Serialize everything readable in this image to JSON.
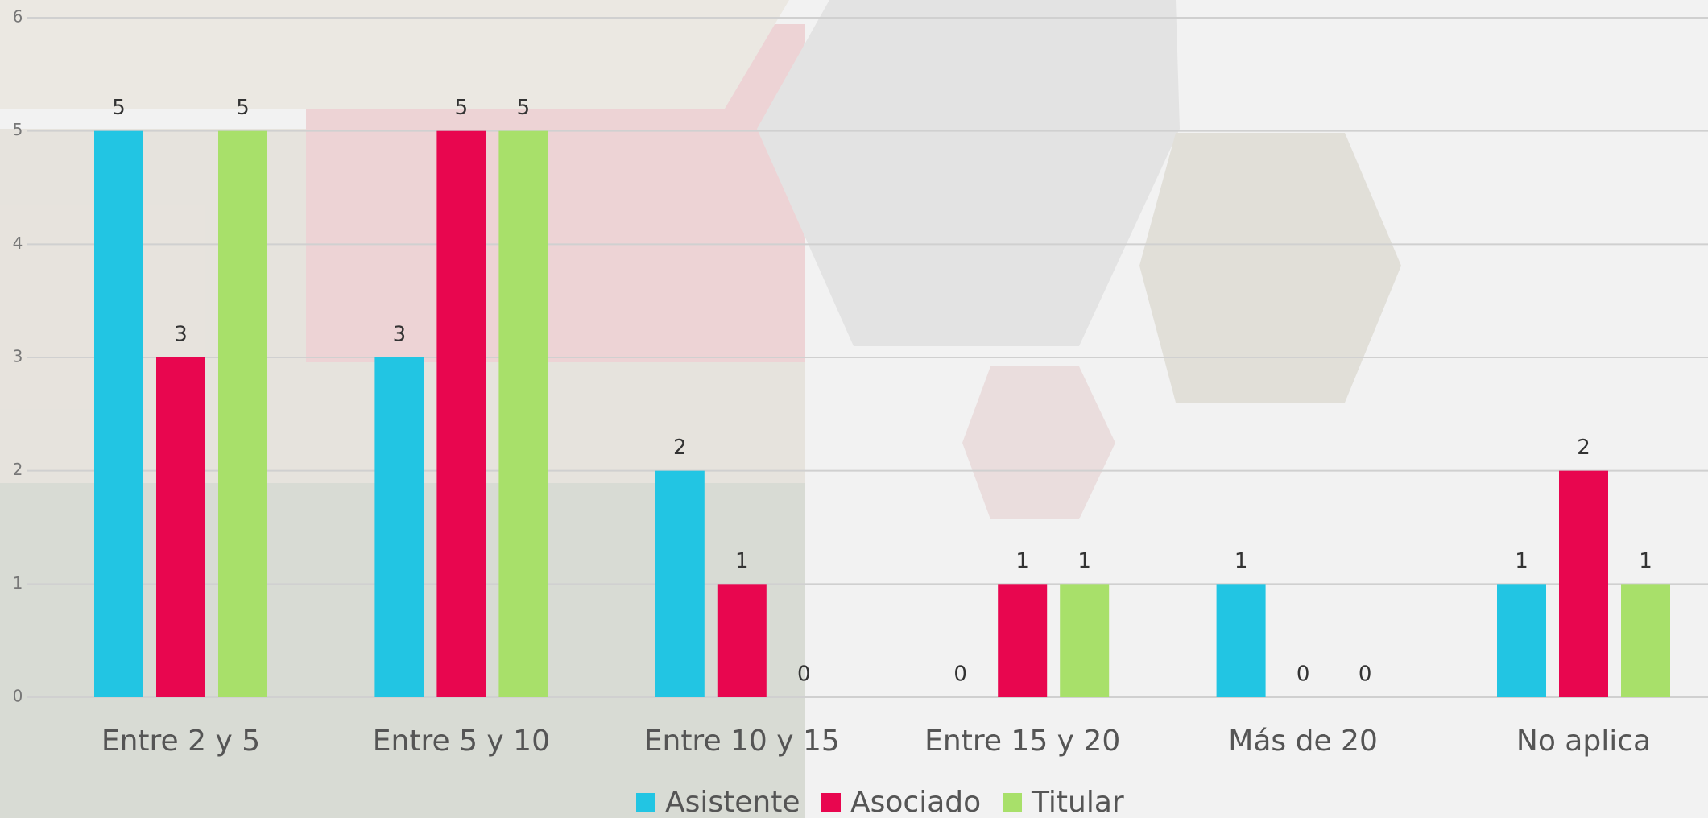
{
  "chart_data": {
    "type": "bar",
    "categories": [
      "Entre 2 y 5",
      "Entre 5 y 10",
      "Entre 10 y 15",
      "Entre 15 y 20",
      "Más de 20",
      "No aplica"
    ],
    "series": [
      {
        "name": "Asistente",
        "color": "#22c5e3",
        "values": [
          5,
          3,
          2,
          0,
          1,
          1
        ]
      },
      {
        "name": "Asociado",
        "color": "#e8064f",
        "values": [
          3,
          5,
          1,
          1,
          0,
          2
        ]
      },
      {
        "name": "Titular",
        "color": "#a8e06a",
        "values": [
          5,
          5,
          0,
          1,
          0,
          1
        ]
      }
    ],
    "ylim": [
      0,
      6
    ],
    "yticks": [
      0,
      1,
      2,
      3,
      4,
      5,
      6
    ],
    "grid": true,
    "legend": "bottom"
  }
}
